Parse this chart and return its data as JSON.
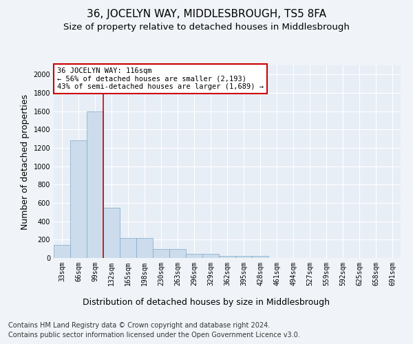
{
  "title": "36, JOCELYN WAY, MIDDLESBROUGH, TS5 8FA",
  "subtitle": "Size of property relative to detached houses in Middlesbrough",
  "xlabel": "Distribution of detached houses by size in Middlesbrough",
  "ylabel": "Number of detached properties",
  "categories": [
    "33sqm",
    "66sqm",
    "99sqm",
    "132sqm",
    "165sqm",
    "198sqm",
    "230sqm",
    "263sqm",
    "296sqm",
    "329sqm",
    "362sqm",
    "395sqm",
    "428sqm",
    "461sqm",
    "494sqm",
    "527sqm",
    "559sqm",
    "592sqm",
    "625sqm",
    "658sqm",
    "691sqm"
  ],
  "values": [
    140,
    1280,
    1600,
    550,
    215,
    215,
    100,
    100,
    45,
    45,
    20,
    20,
    20,
    0,
    0,
    0,
    0,
    0,
    0,
    0,
    0
  ],
  "bar_color": "#ccdcec",
  "bar_edge_color": "#7aaac8",
  "red_line_x": 2.5,
  "annotation_text": "36 JOCELYN WAY: 116sqm\n← 56% of detached houses are smaller (2,193)\n43% of semi-detached houses are larger (1,689) →",
  "annotation_box_color": "#ffffff",
  "annotation_box_edge_color": "#cc0000",
  "ylim": [
    0,
    2100
  ],
  "yticks": [
    0,
    200,
    400,
    600,
    800,
    1000,
    1200,
    1400,
    1600,
    1800,
    2000
  ],
  "footer_line1": "Contains HM Land Registry data © Crown copyright and database right 2024.",
  "footer_line2": "Contains public sector information licensed under the Open Government Licence v3.0.",
  "bg_color": "#f0f4f8",
  "plot_bg_color": "#e8eef6",
  "grid_color": "#ffffff",
  "title_fontsize": 11,
  "subtitle_fontsize": 9.5,
  "label_fontsize": 9,
  "tick_fontsize": 7,
  "annotation_fontsize": 7.5,
  "footer_fontsize": 7
}
